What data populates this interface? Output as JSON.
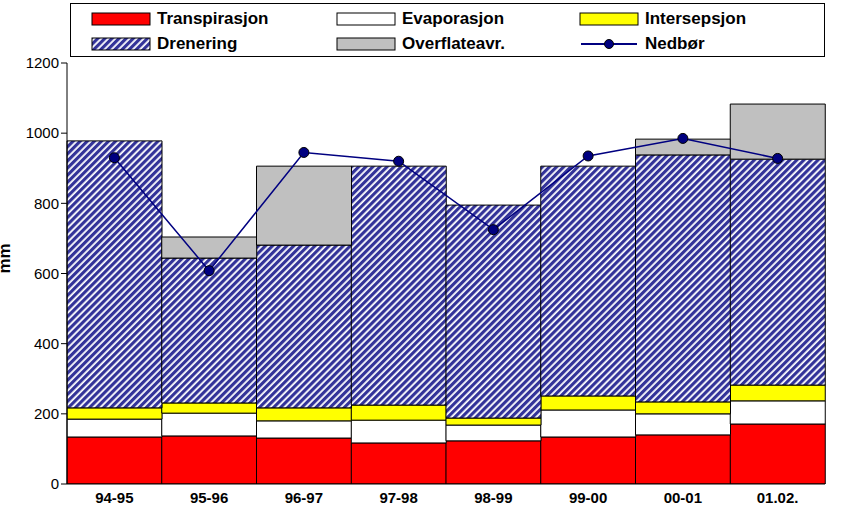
{
  "chart_data": {
    "type": "bar",
    "stacked": true,
    "ylabel": "mm",
    "categories": [
      "94-95",
      "95-96",
      "96-97",
      "97-98",
      "98-99",
      "99-00",
      "00-01",
      "01.02."
    ],
    "ylim": [
      0,
      1200
    ],
    "yticks": [
      0,
      200,
      400,
      600,
      800,
      1000,
      1200
    ],
    "grid": false,
    "legend": "top",
    "series": [
      {
        "name": "Transpirasjon",
        "color": "#ff0000",
        "values": [
          134,
          137,
          131,
          117,
          123,
          134,
          140,
          171
        ]
      },
      {
        "name": "Evaporasjon",
        "color": "#ffffff",
        "values": [
          51,
          65,
          49,
          65,
          45,
          77,
          60,
          66
        ]
      },
      {
        "name": "Intersepsjon",
        "color": "#ffff00",
        "values": [
          32,
          29,
          37,
          43,
          20,
          40,
          34,
          45
        ]
      },
      {
        "name": "Drenering",
        "color": "#333399",
        "values": [
          761,
          413,
          464,
          681,
          607,
          655,
          704,
          644
        ]
      },
      {
        "name": "Overflateavr.",
        "color": "#c0c0c0",
        "values": [
          0,
          60,
          225,
          0,
          0,
          0,
          45,
          157
        ]
      },
      {
        "name": "Nedbør",
        "type": "line",
        "color": "#000080",
        "marker": "circle",
        "values": [
          930,
          608,
          945,
          920,
          725,
          935,
          985,
          928
        ]
      }
    ]
  }
}
